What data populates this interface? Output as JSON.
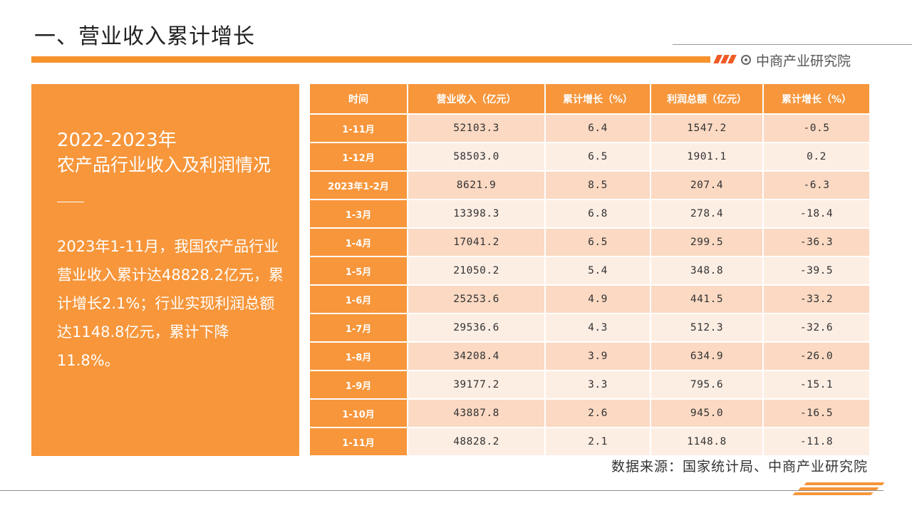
{
  "header": {
    "title": "一、营业收入累计增长",
    "brand": "中商产业研究院"
  },
  "sidebar": {
    "year": "2022-2023年",
    "subtitle": "农产品行业收入及利润情况",
    "body": "2023年1-11月，我国农产品行业营业收入累计达48828.2亿元，累计增长2.1%；行业实现利润总额达1148.8亿元，累计下降11.8%。"
  },
  "table": {
    "headers": [
      "时间",
      "营业收入（亿元）",
      "累计增长（%）",
      "利润总额（亿元）",
      "累计增长（%）"
    ],
    "rows": [
      [
        "1-11月",
        "52103.3",
        "6.4",
        "1547.2",
        "-0.5"
      ],
      [
        "1-12月",
        "58503.0",
        "6.5",
        "1901.1",
        "0.2"
      ],
      [
        "2023年1-2月",
        "8621.9",
        "8.5",
        "207.4",
        "-6.3"
      ],
      [
        "1-3月",
        "13398.3",
        "6.8",
        "278.4",
        "-18.4"
      ],
      [
        "1-4月",
        "17041.2",
        "6.5",
        "299.5",
        "-36.3"
      ],
      [
        "1-5月",
        "21050.2",
        "5.4",
        "348.8",
        "-39.5"
      ],
      [
        "1-6月",
        "25253.6",
        "4.9",
        "441.5",
        "-33.2"
      ],
      [
        "1-7月",
        "29536.6",
        "4.3",
        "512.3",
        "-32.6"
      ],
      [
        "1-8月",
        "34208.4",
        "3.9",
        "634.9",
        "-26.0"
      ],
      [
        "1-9月",
        "39177.2",
        "3.3",
        "795.6",
        "-15.1"
      ],
      [
        "1-10月",
        "43887.8",
        "2.6",
        "945.0",
        "-16.5"
      ],
      [
        "1-11月",
        "48828.2",
        "2.1",
        "1148.8",
        "-11.8"
      ]
    ]
  },
  "footer": {
    "source": "数据来源：国家统计局、中商产业研究院"
  },
  "colors": {
    "accent": "#f7963b",
    "stripe": "#f15a24",
    "row_dark": "#fbd9c3",
    "row_light": "#fdeee4"
  }
}
